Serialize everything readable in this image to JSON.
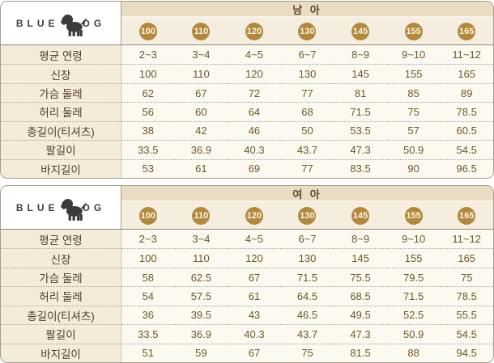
{
  "brand": {
    "logo_left": "BLUE",
    "logo_right": "OG",
    "dog_icon": "dog-silhouette"
  },
  "colors": {
    "header_band_bg": "#e9dcc2",
    "sizes_row_bg": "#f5eedf",
    "label_cell_bg": "#f4ecd9",
    "value_cell_bg": "#fcf9f0",
    "circle_bg": "#b2883e",
    "circle_text": "#fdf6e0",
    "title_text": "#5b4a30",
    "label_text": "#4e3e2b",
    "value_text": "#6b5a28",
    "border_grey": "#a49e90",
    "border_soft": "#8d887e",
    "divider_tan": "#cdc2a9",
    "dot_grey": "#a8a296"
  },
  "tables": [
    {
      "title": "남 아",
      "sizes": [
        "100",
        "110",
        "120",
        "130",
        "145",
        "155",
        "165"
      ],
      "rows": [
        {
          "label": "평균 연령",
          "values": [
            "2~3",
            "3~4",
            "4~5",
            "6~7",
            "8~9",
            "9~10",
            "11~12"
          ]
        },
        {
          "label": "신장",
          "values": [
            "100",
            "110",
            "120",
            "130",
            "145",
            "155",
            "165"
          ]
        },
        {
          "label": "가슴 둘레",
          "values": [
            "62",
            "67",
            "72",
            "77",
            "81",
            "85",
            "89"
          ]
        },
        {
          "label": "허리 둘레",
          "values": [
            "56",
            "60",
            "64",
            "68",
            "71.5",
            "75",
            "78.5"
          ]
        },
        {
          "label": "총길이(티셔츠)",
          "values": [
            "38",
            "42",
            "46",
            "50",
            "53.5",
            "57",
            "60.5"
          ]
        },
        {
          "label": "팔길이",
          "values": [
            "33.5",
            "36.9",
            "40.3",
            "43.7",
            "47.3",
            "50.9",
            "54.5"
          ]
        },
        {
          "label": "바지길이",
          "values": [
            "53",
            "61",
            "69",
            "77",
            "83.5",
            "90",
            "96.5"
          ]
        }
      ]
    },
    {
      "title": "여 아",
      "sizes": [
        "100",
        "110",
        "120",
        "130",
        "145",
        "155",
        "165"
      ],
      "rows": [
        {
          "label": "평균 연령",
          "values": [
            "2~3",
            "3~4",
            "4~5",
            "6~7",
            "8~9",
            "9~10",
            "11~12"
          ]
        },
        {
          "label": "신장",
          "values": [
            "100",
            "110",
            "120",
            "130",
            "145",
            "155",
            "165"
          ]
        },
        {
          "label": "가슴 둘레",
          "values": [
            "58",
            "62.5",
            "67",
            "71.5",
            "75.5",
            "79.5",
            "75"
          ]
        },
        {
          "label": "허리 둘레",
          "values": [
            "54",
            "57.5",
            "61",
            "64.5",
            "68.5",
            "71.5",
            "78.5"
          ]
        },
        {
          "label": "총길이(티셔츠)",
          "values": [
            "36",
            "39.5",
            "43",
            "46.5",
            "49.5",
            "52.5",
            "55.5"
          ]
        },
        {
          "label": "팔길이",
          "values": [
            "33.5",
            "36.9",
            "40.3",
            "43.7",
            "47.3",
            "50.9",
            "54.5"
          ]
        },
        {
          "label": "바지길이",
          "values": [
            "51",
            "59",
            "67",
            "75",
            "81.5",
            "88",
            "94.5"
          ]
        }
      ]
    }
  ]
}
